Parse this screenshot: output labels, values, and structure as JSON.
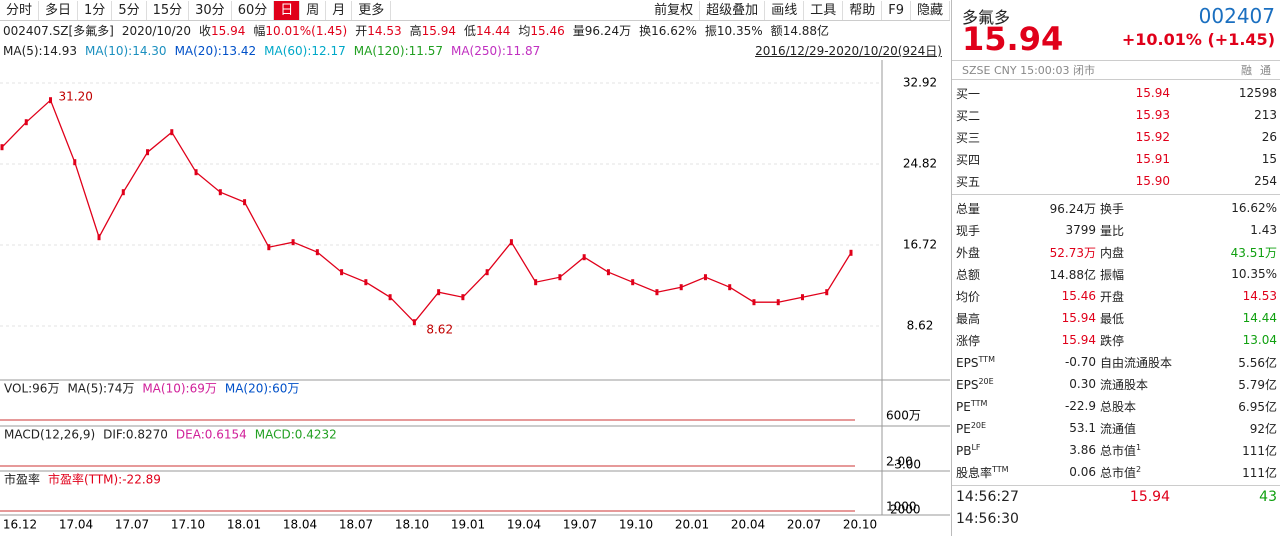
{
  "toolbar": {
    "left": [
      "分时",
      "多日",
      "1分",
      "5分",
      "15分",
      "30分",
      "60分",
      "日",
      "周",
      "月",
      "更多"
    ],
    "active": 7,
    "right": [
      "前复权",
      "超级叠加",
      "画线",
      "工具",
      "帮助",
      "F9",
      "隐藏"
    ]
  },
  "info_bar": {
    "code": "002407.SZ[多氟多]",
    "date": "2020/10/20",
    "items": [
      {
        "k": "收",
        "v": "15.94",
        "color": "#e0001a"
      },
      {
        "k": "幅",
        "v": "10.01%(1.45)",
        "color": "#e0001a"
      },
      {
        "k": "开",
        "v": "14.53",
        "color": "#e0001a"
      },
      {
        "k": "高",
        "v": "15.94",
        "color": "#e0001a"
      },
      {
        "k": "低",
        "v": "14.44",
        "color": "#e0001a"
      },
      {
        "k": "均",
        "v": "15.46",
        "color": "#e0001a"
      },
      {
        "k": "量",
        "v": "96.24万",
        "color": "#222"
      },
      {
        "k": "换",
        "v": "16.62%",
        "color": "#222"
      },
      {
        "k": "振",
        "v": "10.35%",
        "color": "#222"
      },
      {
        "k": "额",
        "v": "14.88亿",
        "color": "#222"
      }
    ]
  },
  "ma_legend": {
    "items": [
      {
        "text": "MA(5):14.93",
        "color": "#222"
      },
      {
        "text": "MA(10):14.30",
        "color": "#1a8fbf"
      },
      {
        "text": "MA(20):13.42",
        "color": "#0050c8"
      },
      {
        "text": "MA(60):12.17",
        "color": "#00a8c8"
      },
      {
        "text": "MA(120):11.57",
        "color": "#22a022"
      },
      {
        "text": "MA(250):11.87",
        "color": "#c030c0"
      }
    ],
    "range": "2016/12/29-2020/10/20(924日)"
  },
  "price_chart": {
    "type": "line",
    "color": "#e0001a",
    "ylim": [
      3.42,
      35.02
    ],
    "yticks": [
      32.92,
      24.82,
      16.72,
      8.62
    ],
    "closes": [
      26.5,
      29,
      31.2,
      25,
      17.5,
      22,
      26,
      28,
      24,
      22,
      21,
      16.5,
      17,
      16,
      14,
      13,
      11.5,
      9,
      12,
      11.5,
      14,
      17,
      13,
      13.5,
      15.5,
      14,
      13,
      12,
      12.5,
      13.5,
      12.5,
      11,
      11,
      11.5,
      12,
      15.94
    ],
    "high_label": "31.20",
    "low_label": "8.62",
    "x_labels": [
      "16.12",
      "17.04",
      "17.07",
      "17.10",
      "18.01",
      "18.04",
      "18.07",
      "18.10",
      "19.01",
      "19.04",
      "19.07",
      "19.10",
      "20.01",
      "20.04",
      "20.07",
      "20.10"
    ]
  },
  "vol_panel": {
    "items": [
      {
        "text": "VOL:96万",
        "color": "#222"
      },
      {
        "text": "MA(5):74万",
        "color": "#222"
      },
      {
        "text": "MA(10):69万",
        "color": "#d0209a"
      },
      {
        "text": "MA(20):60万",
        "color": "#0050c8"
      }
    ],
    "axis": "600万"
  },
  "macd_panel": {
    "items": [
      {
        "text": "MACD(12,26,9)",
        "color": "#222"
      },
      {
        "text": "DIF:0.8270",
        "color": "#222"
      },
      {
        "text": "DEA:0.6154",
        "color": "#d0209a"
      },
      {
        "text": "MACD:0.4232",
        "color": "#22a022"
      }
    ],
    "axis": [
      "2.00",
      "-3.00"
    ]
  },
  "pe_panel": {
    "items": [
      {
        "text": "市盈率",
        "color": "#222"
      },
      {
        "text": "市盈率(TTM):-22.89",
        "color": "#e0001a"
      }
    ],
    "axis": [
      "1000",
      "2000"
    ]
  },
  "quote": {
    "name": "多氟多",
    "code": "002407",
    "price": "15.94",
    "change": "+10.01% (+1.45)",
    "status": "SZSE  CNY  15:00:03  闭市",
    "tags": [
      "融",
      "通"
    ]
  },
  "order_book": [
    [
      "买一",
      "15.94",
      "12598"
    ],
    [
      "买二",
      "15.93",
      "213"
    ],
    [
      "买三",
      "15.92",
      "26"
    ],
    [
      "买四",
      "15.91",
      "15"
    ],
    [
      "买五",
      "15.90",
      "254"
    ]
  ],
  "stats": [
    {
      "l1": "总量",
      "v1": "96.24万",
      "l2": "换手",
      "v2": "16.62%"
    },
    {
      "l1": "现手",
      "v1": "3799",
      "l2": "量比",
      "v2": "1.43"
    },
    {
      "l1": "外盘",
      "v1": "52.73万",
      "l2": "内盘",
      "v2": "43.51万",
      "c1": "#e0001a",
      "c2": "#10a010"
    },
    {
      "l1": "总额",
      "v1": "14.88亿",
      "l2": "振幅",
      "v2": "10.35%"
    },
    {
      "l1": "均价",
      "v1": "15.46",
      "l2": "开盘",
      "v2": "14.53",
      "c1": "#e0001a",
      "c2": "#e0001a"
    },
    {
      "l1": "最高",
      "v1": "15.94",
      "l2": "最低",
      "v2": "14.44",
      "c1": "#e0001a",
      "c2": "#10a010"
    },
    {
      "l1": "涨停",
      "v1": "15.94",
      "l2": "跌停",
      "v2": "13.04",
      "c1": "#e0001a",
      "c2": "#10a010"
    },
    {
      "l1": "EPS",
      "s1": "TTM",
      "v1": "-0.70",
      "l2": "自由流通股本",
      "v2": "5.56亿"
    },
    {
      "l1": "EPS",
      "s1": "20E",
      "v1": "0.30",
      "l2": "流通股本",
      "v2": "5.79亿"
    },
    {
      "l1": "PE",
      "s1": "TTM",
      "v1": "-22.9",
      "l2": "总股本",
      "v2": "6.95亿"
    },
    {
      "l1": "PE",
      "s1": "20E",
      "v1": "53.1",
      "l2": "流通值",
      "v2": "92亿"
    },
    {
      "l1": "PB",
      "s1": "LF",
      "v1": "3.86",
      "l2": "总市值",
      "s2": "1",
      "v2": "111亿"
    },
    {
      "l1": "股息率",
      "s1": "TTM",
      "v1": "0.06",
      "l2": "总市值",
      "s2": "2",
      "v2": "111亿"
    }
  ],
  "trades": [
    [
      "14:56:27",
      "15.94",
      "43"
    ],
    [
      "14:56:30",
      "",
      ""
    ]
  ]
}
